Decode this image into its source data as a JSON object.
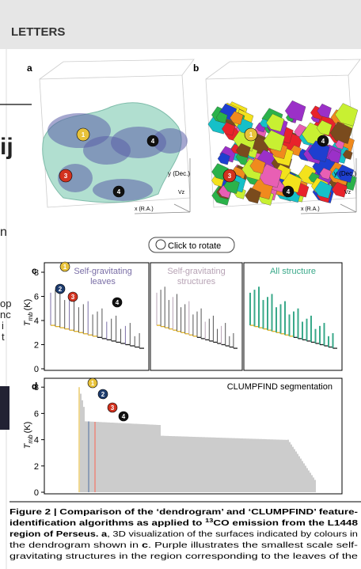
{
  "header": {
    "title": "LETTERS"
  },
  "background_fragments": [
    "ij",
    "n",
    "op",
    "nc",
    "i",
    "t"
  ],
  "panel_a": {
    "label": "a",
    "y_axis": "y (Dec.)",
    "v_axis": "Vz",
    "x_axis": "x (R.A.)"
  },
  "panel_b": {
    "label": "b",
    "y_axis": "y (Dec.)",
    "v_axis": "Vz",
    "x_axis": "x (R.A.)"
  },
  "markers": [
    "1",
    "2",
    "3",
    "4"
  ],
  "rotate_button": {
    "label": "Click to rotate"
  },
  "panel_c": {
    "label": "c",
    "y_label": {
      "symbol": "T",
      "subscript": "mb",
      "unit": "(K)"
    },
    "yticks": [
      0,
      2,
      4,
      6,
      8
    ],
    "subpanels": [
      {
        "title_lines": [
          "Self-gravitating",
          "leaves"
        ],
        "color": "#7a6ea6"
      },
      {
        "title_lines": [
          "Self-gravitating",
          "structures"
        ],
        "color": "#b7a3b5"
      },
      {
        "title_lines": [
          "All structure"
        ],
        "color": "#3aa98a"
      }
    ]
  },
  "panel_d": {
    "label": "d",
    "title": "CLUMPFIND segmentation",
    "y_label": {
      "symbol": "T",
      "subscript": "mb",
      "unit": "(K)"
    },
    "yticks": [
      0,
      2,
      4,
      6,
      8
    ]
  },
  "caption": {
    "lines": [
      [
        {
          "text": "Figure 2 | Comparison of the ‘dendrogram’ and ‘CLUMPFIND’ feature-",
          "style": "b"
        }
      ],
      [
        {
          "text": "identification algorithms as applied to ",
          "style": "b"
        },
        {
          "text": "13",
          "style": "sup"
        },
        {
          "text": "CO emission from the L1448",
          "style": "b"
        }
      ],
      [
        {
          "text": "region of Perseus. a",
          "style": "b"
        },
        {
          "text": ", 3D visualization of the surfaces indicated by colours in",
          "style": "n"
        }
      ],
      [
        {
          "text": "the dendrogram shown in ",
          "style": "n"
        },
        {
          "text": "c",
          "style": "b"
        },
        {
          "text": ". Purple illustrates the smallest scale self-",
          "style": "n"
        }
      ],
      [
        {
          "text": "gravitating structures in the region corresponding to the leaves of the",
          "style": "n"
        }
      ]
    ]
  }
}
